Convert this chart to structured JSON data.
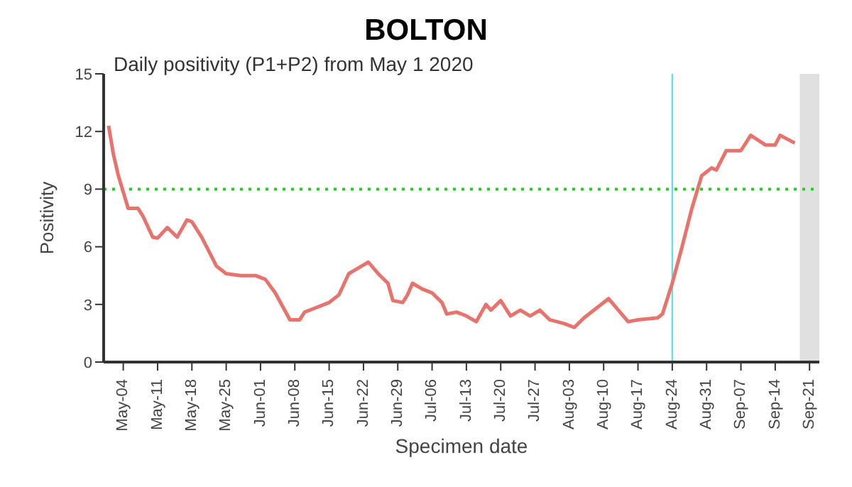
{
  "chart_data": {
    "type": "line",
    "title": "BOLTON",
    "subtitle": "Daily positivity (P1+P2) from May 1 2020",
    "xlabel": "Specimen date",
    "ylabel": "Positivity",
    "x": [
      "2020-05-01",
      "2020-05-02",
      "2020-05-03",
      "2020-05-05",
      "2020-05-07",
      "2020-05-08",
      "2020-05-10",
      "2020-05-11",
      "2020-05-13",
      "2020-05-15",
      "2020-05-17",
      "2020-05-18",
      "2020-05-20",
      "2020-05-23",
      "2020-05-25",
      "2020-05-28",
      "2020-05-31",
      "2020-06-02",
      "2020-06-04",
      "2020-06-07",
      "2020-06-09",
      "2020-06-10",
      "2020-06-12",
      "2020-06-14",
      "2020-06-15",
      "2020-06-17",
      "2020-06-19",
      "2020-06-21",
      "2020-06-23",
      "2020-06-25",
      "2020-06-27",
      "2020-06-28",
      "2020-06-30",
      "2020-07-01",
      "2020-07-02",
      "2020-07-04",
      "2020-07-06",
      "2020-07-08",
      "2020-07-09",
      "2020-07-11",
      "2020-07-13",
      "2020-07-15",
      "2020-07-17",
      "2020-07-18",
      "2020-07-20",
      "2020-07-22",
      "2020-07-24",
      "2020-07-26",
      "2020-07-28",
      "2020-07-30",
      "2020-08-02",
      "2020-08-04",
      "2020-08-06",
      "2020-08-09",
      "2020-08-11",
      "2020-08-13",
      "2020-08-15",
      "2020-08-17",
      "2020-08-21",
      "2020-08-22",
      "2020-08-24",
      "2020-08-26",
      "2020-08-28",
      "2020-08-30",
      "2020-09-01",
      "2020-09-02",
      "2020-09-04",
      "2020-09-07",
      "2020-09-09",
      "2020-09-12",
      "2020-09-14",
      "2020-09-15",
      "2020-09-18"
    ],
    "series": [
      {
        "color": "#e8736c",
        "values": [
          12.3,
          10.8,
          9.7,
          8.0,
          8.0,
          7.6,
          6.5,
          6.45,
          7.0,
          6.5,
          7.4,
          7.3,
          6.5,
          5.0,
          4.6,
          4.5,
          4.5,
          4.3,
          3.6,
          2.2,
          2.2,
          2.6,
          2.8,
          3.0,
          3.1,
          3.5,
          4.6,
          4.9,
          5.2,
          4.6,
          4.1,
          3.2,
          3.1,
          3.5,
          4.1,
          3.8,
          3.6,
          3.1,
          2.5,
          2.6,
          2.4,
          2.1,
          3.0,
          2.7,
          3.2,
          2.4,
          2.7,
          2.4,
          2.7,
          2.2,
          2.0,
          1.8,
          2.3,
          2.9,
          3.3,
          2.7,
          2.1,
          2.2,
          2.3,
          2.5,
          4.1,
          6.0,
          8.0,
          9.7,
          10.1,
          10.0,
          11.0,
          11.0,
          11.8,
          11.3,
          11.3,
          11.8,
          11.4
        ]
      }
    ],
    "xlim": [
      "2020-04-30",
      "2020-09-23"
    ],
    "xticks": [
      {
        "value": "2020-05-04",
        "label": "May-04"
      },
      {
        "value": "2020-05-11",
        "label": "May-11"
      },
      {
        "value": "2020-05-18",
        "label": "May-18"
      },
      {
        "value": "2020-05-25",
        "label": "May-25"
      },
      {
        "value": "2020-06-01",
        "label": "Jun-01"
      },
      {
        "value": "2020-06-08",
        "label": "Jun-08"
      },
      {
        "value": "2020-06-15",
        "label": "Jun-15"
      },
      {
        "value": "2020-06-22",
        "label": "Jun-22"
      },
      {
        "value": "2020-06-29",
        "label": "Jun-29"
      },
      {
        "value": "2020-07-06",
        "label": "Jul-06"
      },
      {
        "value": "2020-07-13",
        "label": "Jul-13"
      },
      {
        "value": "2020-07-20",
        "label": "Jul-20"
      },
      {
        "value": "2020-07-27",
        "label": "Jul-27"
      },
      {
        "value": "2020-08-03",
        "label": "Aug-03"
      },
      {
        "value": "2020-08-10",
        "label": "Aug-10"
      },
      {
        "value": "2020-08-17",
        "label": "Aug-17"
      },
      {
        "value": "2020-08-24",
        "label": "Aug-24"
      },
      {
        "value": "2020-08-31",
        "label": "Aug-31"
      },
      {
        "value": "2020-09-07",
        "label": "Sep-07"
      },
      {
        "value": "2020-09-14",
        "label": "Sep-14"
      },
      {
        "value": "2020-09-21",
        "label": "Sep-21"
      }
    ],
    "ylim": [
      0,
      15
    ],
    "yticks": [
      0,
      3,
      6,
      9,
      12,
      15
    ],
    "ref_lines": [
      {
        "axis": "y",
        "value": 9,
        "color": "#22cc22",
        "line_style": "dotted"
      },
      {
        "axis": "x",
        "value": "2020-08-24",
        "color": "#66dde8",
        "line_style": "solid"
      }
    ],
    "bands": [
      {
        "axis": "x",
        "from": "2020-09-19",
        "to": "2020-09-23",
        "color": "#e0e0e0"
      }
    ],
    "grid": false,
    "legend": false,
    "marker": "none",
    "line_style": "solid"
  }
}
